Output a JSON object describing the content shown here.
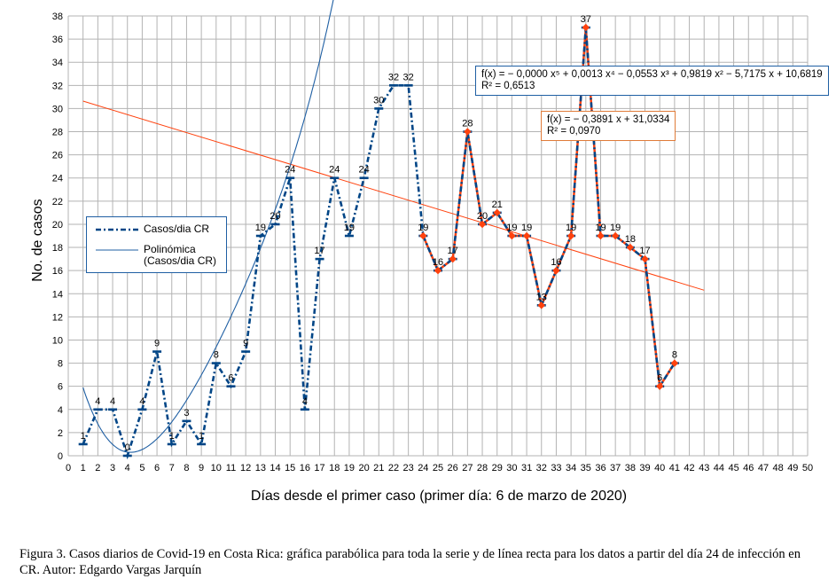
{
  "chart_data": {
    "type": "line",
    "ylabel": "No. de casos",
    "xlabel": "Días desde el primer caso (primer día: 6 de marzo de 2020)",
    "xlim": [
      0,
      50
    ],
    "ylim": [
      0,
      38
    ],
    "x_ticks": [
      0,
      1,
      2,
      3,
      4,
      5,
      6,
      7,
      8,
      9,
      10,
      11,
      12,
      13,
      14,
      15,
      16,
      17,
      18,
      19,
      20,
      21,
      22,
      23,
      24,
      25,
      26,
      27,
      28,
      29,
      30,
      31,
      32,
      33,
      34,
      35,
      36,
      37,
      38,
      39,
      40,
      41,
      42,
      43,
      44,
      45,
      46,
      47,
      48,
      49,
      50
    ],
    "y_ticks": [
      0,
      2,
      4,
      6,
      8,
      10,
      12,
      14,
      16,
      18,
      20,
      22,
      24,
      26,
      28,
      30,
      32,
      34,
      36,
      38
    ],
    "grid": true,
    "legend_position": "left",
    "series": [
      {
        "name": "Casos/dia CR",
        "x": [
          1,
          2,
          3,
          4,
          5,
          6,
          7,
          8,
          9,
          10,
          11,
          12,
          13,
          14,
          15,
          16,
          17,
          18,
          19,
          20,
          21,
          22,
          23,
          24,
          25,
          26,
          27,
          28,
          29,
          30,
          31,
          32,
          33,
          34,
          35,
          36,
          37,
          38,
          39,
          40,
          41
        ],
        "values": [
          1,
          4,
          4,
          0,
          4,
          9,
          1,
          3,
          1,
          8,
          6,
          9,
          19,
          20,
          24,
          4,
          17,
          24,
          19,
          24,
          30,
          32,
          32,
          19,
          16,
          17,
          28,
          20,
          21,
          19,
          19,
          13,
          16,
          19,
          37,
          19,
          19,
          18,
          17,
          6,
          8
        ],
        "data_labels": [
          "1",
          "4",
          "4",
          "0",
          "4",
          "9",
          "1",
          "3",
          "1",
          "8",
          "6",
          "9",
          "19",
          "20",
          "24",
          "4",
          "17",
          "24",
          "19",
          "24",
          "30",
          "32",
          "32",
          "19",
          "16",
          "17",
          "28",
          "20",
          "21",
          "19",
          "19",
          "13",
          "16",
          "19",
          "37",
          "19",
          "19",
          "18",
          "17",
          "6",
          "8"
        ],
        "color": "#004586",
        "style": "dash-dot"
      },
      {
        "name": "Polinómica (Casos/dia CR)",
        "type": "polynomial-trend",
        "coefficients": [
          0.0,
          0.0013,
          -0.0553,
          0.9819,
          -5.7175,
          10.6819
        ],
        "equation": "f(x) = − 0,0000 x⁵ + 0,0013 x⁴ − 0,0553 x³ + 0,9819 x² − 5,7175 x + 10,6819",
        "r2": "R² = 0,6513",
        "color": "#004586"
      },
      {
        "type": "linear-trend",
        "subset_x": [
          24,
          41
        ],
        "slope": -0.3891,
        "intercept": 31.0334,
        "line_x_range": [
          1,
          43
        ],
        "equation": "f(x) = − 0,3891 x + 31,0334",
        "r2": "R² = 0,0970",
        "color": "#ff420e"
      }
    ],
    "legend": [
      "Casos/dia CR",
      "Polinómica\n(Casos/dia CR)"
    ]
  },
  "legend": {
    "item1": "Casos/dia CR",
    "item2_line1": "Polinómica",
    "item2_line2": "(Casos/dia CR)"
  },
  "equations": {
    "poly_eq": "f(x) = − 0,0000 x⁵ + 0,0013 x⁴ − 0,0553 x³ + 0,9819 x² − 5,7175 x + 10,6819",
    "poly_r2": "R² = 0,6513",
    "lin_eq": "f(x) = − 0,3891 x + 31,0334",
    "lin_r2": "R² = 0,0970"
  },
  "caption": "Figura 3. Casos diarios de Covid-19 en Costa Rica: gráfica parabólica para toda la serie y de línea recta para los datos a partir del día 24 de infección en CR. Autor: Edgardo Vargas Jarquín"
}
